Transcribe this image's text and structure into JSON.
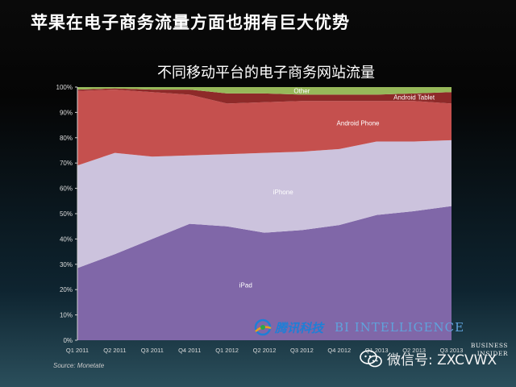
{
  "slide": {
    "title": "苹果在电子商务流量方面也拥有巨大优势"
  },
  "chart_data": {
    "type": "area",
    "stacked": true,
    "title": "不同移动平台的电子商务网站流量",
    "categories": [
      "Q1 2011",
      "Q2 2011",
      "Q3 2011",
      "Q4 2011",
      "Q1 2012",
      "Q2 2012",
      "Q3 2012",
      "Q4 2012",
      "Q1 2013",
      "Q2 2013",
      "Q3 2013"
    ],
    "ylim": [
      0,
      100
    ],
    "yticks": [
      "0%",
      "10%",
      "20%",
      "30%",
      "40%",
      "50%",
      "60%",
      "70%",
      "80%",
      "90%",
      "100%"
    ],
    "series": [
      {
        "name": "iPad",
        "color": "#8067a8",
        "values": [
          28.5,
          34,
          40,
          46,
          45,
          42.5,
          43.5,
          45.5,
          49.5,
          51,
          53
        ]
      },
      {
        "name": "iPhone",
        "color": "#ccc3dd",
        "values": [
          40.5,
          40,
          32.5,
          27,
          28.5,
          31.5,
          31,
          30,
          29,
          27.5,
          26
        ]
      },
      {
        "name": "Android Phone",
        "color": "#c5504e",
        "values": [
          29.5,
          25,
          25.5,
          24,
          20,
          20,
          20,
          19,
          16,
          16,
          14.5
        ]
      },
      {
        "name": "Android Tablet",
        "color": "#8e2a29",
        "values": [
          0.5,
          0.5,
          1,
          2,
          4,
          3.5,
          2.5,
          2.5,
          2.5,
          3,
          4.5
        ]
      },
      {
        "name": "Other",
        "color": "#97b85a",
        "values": [
          1,
          0.5,
          1,
          1,
          2.5,
          2.5,
          3,
          3,
          3,
          2.5,
          2
        ]
      }
    ],
    "grid": false,
    "source": "Source: Monetate"
  },
  "watermark": {
    "cn": "腾讯科技",
    "en": "BI INTELLIGENCE"
  },
  "wechat": {
    "text": "微信号: ZXCVWX"
  },
  "bi_logo": {
    "line1": "BUSINESS",
    "line2": "INSIDER"
  }
}
